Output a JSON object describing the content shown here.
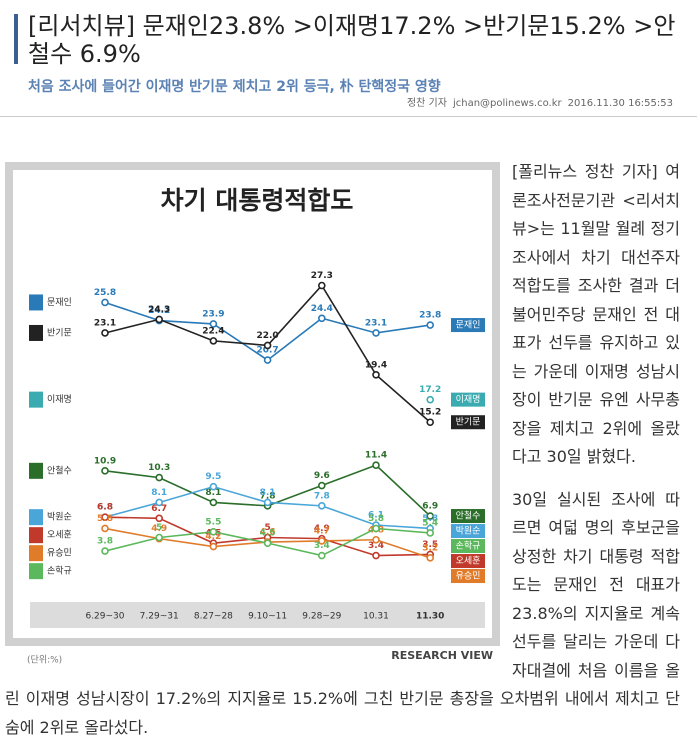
{
  "article": {
    "headline": "[리서치뷰] 문재인23.8% >이재명17.2% >반기문15.2% >안철수 6.9%",
    "subtitle": "처음 조사에 들어간 이재명 반기문 제치고 2위 등극, 朴 탄핵정국 영향",
    "reporter": "정찬 기자",
    "email": "jchan@polinews.co.kr",
    "datetime": "2016.11.30 16:55:53",
    "paragraphs": [
      "[폴리뉴스 정찬 기자] 여론조사전문기관 <리서치뷰>는 11월말 월례 정기조사에서 차기 대선주자 적합도를 조사한 결과 더불어민주당 문재인 전 대표가 선두를 유지하고 있는 가운데 이재명 성남시장이 반기문 유엔 사무총장을 제치고 2위에 올랐다고 30일 밝혔다.",
      "30일 실시된 조사에 따르면 여덟 명의 후보군을 상정한 차기 대통령 적합도는 문재인 전 대표가 23.8%의 지지율로 계속 선두를 달리는 가운데 다자대결에 처음 이름을 올린 이재명 성남시장이 17.2%의 지지율로 15.2%에 그친 반기문 총장을 오차범위 내에서 제치고 단숨에 2위로 올라섰다."
    ]
  },
  "chart_data": {
    "type": "line",
    "title": "차기 대통령적합도",
    "unit": "(단위:%)",
    "source": "RESEARCH VIEW",
    "categories": [
      "6.29~30",
      "7.29~31",
      "8.27~28",
      "9.10~11",
      "9.28~29",
      "10.31",
      "11.30"
    ],
    "ylim": [
      0,
      30
    ],
    "series": [
      {
        "name": "문재인",
        "color": "#2a7ab8",
        "values": [
          25.8,
          24.2,
          23.9,
          20.7,
          24.4,
          23.1,
          23.8
        ]
      },
      {
        "name": "반기문",
        "color": "#222222",
        "values": [
          23.1,
          24.3,
          22.4,
          22.0,
          27.3,
          19.4,
          15.2
        ],
        "value_labels": [
          "23.1",
          "24.3",
          "22.4",
          "22.0",
          "27.3",
          "19.4",
          "15.2"
        ]
      },
      {
        "name": "이재명",
        "color": "#3aabb0",
        "values": [
          null,
          null,
          null,
          null,
          null,
          null,
          17.2
        ]
      },
      {
        "name": "안철수",
        "color": "#2a6e2a",
        "values": [
          10.9,
          10.3,
          8.1,
          7.8,
          9.6,
          11.4,
          6.9
        ]
      },
      {
        "name": "박원순",
        "color": "#4aa6d9",
        "values": [
          6.8,
          8.1,
          9.5,
          8.1,
          7.8,
          6.1,
          5.8
        ]
      },
      {
        "name": "오세훈",
        "color": "#c0392b",
        "values": [
          6.8,
          6.7,
          4.5,
          5.0,
          4.9,
          3.4,
          3.5
        ]
      },
      {
        "name": "유승민",
        "color": "#e07b2a",
        "values": [
          5.8,
          4.9,
          4.2,
          4.6,
          4.7,
          4.8,
          3.2
        ]
      },
      {
        "name": "손학규",
        "color": "#5cb85c",
        "values": [
          3.8,
          5.0,
          5.5,
          4.5,
          3.4,
          5.8,
          5.4
        ]
      }
    ]
  }
}
